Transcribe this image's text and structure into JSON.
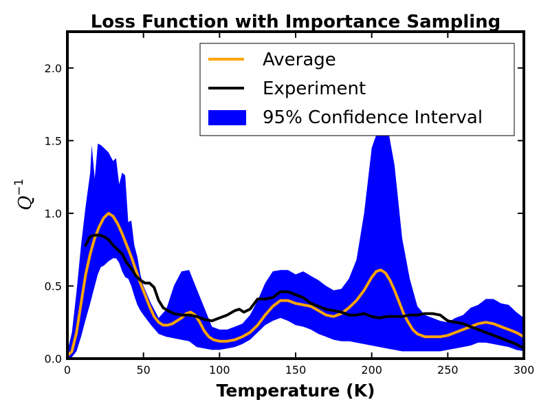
{
  "chart_data": {
    "type": "line",
    "title": "Loss Function with Importance Sampling",
    "xlabel": "Temperature (K)",
    "ylabel": "Q",
    "ylabel_superscript": "−1",
    "xlim": [
      0,
      300
    ],
    "ylim": [
      0,
      2.25
    ],
    "xticks": [
      0,
      50,
      100,
      150,
      200,
      250,
      300
    ],
    "yticks": [
      0.0,
      0.5,
      1.0,
      1.5,
      2.0
    ],
    "xtick_labels": [
      "0",
      "50",
      "100",
      "150",
      "200",
      "250",
      "300"
    ],
    "ytick_labels": [
      "0.0",
      "0.5",
      "1.0",
      "1.5",
      "2.0"
    ],
    "grid": false,
    "legend_position": "top-right",
    "legend": [
      "Average",
      "Experiment",
      "95% Confidence Interval"
    ],
    "colors": {
      "average": "#ffa500",
      "experiment": "#000000",
      "band": "#0000ff"
    },
    "series": [
      {
        "name": "Average",
        "x": [
          0,
          3,
          6,
          9,
          12,
          15,
          18,
          21,
          24,
          27,
          30,
          33,
          36,
          39,
          42,
          45,
          48,
          51,
          54,
          57,
          60,
          63,
          66,
          69,
          72,
          75,
          78,
          81,
          84,
          87,
          90,
          93,
          96,
          100,
          105,
          110,
          115,
          120,
          125,
          130,
          135,
          140,
          145,
          150,
          155,
          160,
          165,
          170,
          175,
          180,
          185,
          190,
          195,
          200,
          203,
          206,
          209,
          212,
          215,
          218,
          221,
          224,
          227,
          230,
          235,
          240,
          245,
          250,
          255,
          260,
          265,
          270,
          275,
          280,
          285,
          290,
          295,
          300
        ],
        "values": [
          0.02,
          0.05,
          0.18,
          0.38,
          0.58,
          0.72,
          0.83,
          0.91,
          0.97,
          1.0,
          0.98,
          0.93,
          0.86,
          0.78,
          0.7,
          0.61,
          0.52,
          0.44,
          0.36,
          0.29,
          0.25,
          0.23,
          0.23,
          0.24,
          0.26,
          0.28,
          0.31,
          0.32,
          0.3,
          0.25,
          0.19,
          0.15,
          0.13,
          0.12,
          0.12,
          0.13,
          0.15,
          0.18,
          0.23,
          0.3,
          0.36,
          0.4,
          0.4,
          0.38,
          0.37,
          0.36,
          0.33,
          0.3,
          0.29,
          0.31,
          0.35,
          0.4,
          0.47,
          0.56,
          0.6,
          0.61,
          0.59,
          0.54,
          0.47,
          0.39,
          0.31,
          0.25,
          0.2,
          0.17,
          0.15,
          0.15,
          0.15,
          0.16,
          0.18,
          0.2,
          0.22,
          0.24,
          0.25,
          0.24,
          0.22,
          0.2,
          0.18,
          0.15
        ]
      },
      {
        "name": "Experiment",
        "x": [
          12,
          15,
          18,
          21,
          24,
          27,
          30,
          33,
          36,
          39,
          42,
          45,
          48,
          51,
          54,
          57,
          60,
          63,
          66,
          70,
          75,
          80,
          85,
          90,
          95,
          100,
          105,
          110,
          113,
          116,
          120,
          125,
          130,
          135,
          140,
          145,
          150,
          155,
          160,
          165,
          170,
          175,
          180,
          185,
          190,
          195,
          200,
          205,
          210,
          215,
          220,
          225,
          230,
          235,
          240,
          245,
          250,
          255,
          260,
          265,
          270,
          275,
          280,
          285,
          290,
          295,
          300
        ],
        "values": [
          0.78,
          0.84,
          0.85,
          0.85,
          0.84,
          0.82,
          0.78,
          0.75,
          0.72,
          0.66,
          0.62,
          0.57,
          0.54,
          0.52,
          0.52,
          0.49,
          0.4,
          0.35,
          0.33,
          0.31,
          0.3,
          0.3,
          0.29,
          0.27,
          0.26,
          0.28,
          0.3,
          0.33,
          0.34,
          0.32,
          0.34,
          0.41,
          0.41,
          0.42,
          0.46,
          0.46,
          0.44,
          0.42,
          0.38,
          0.36,
          0.34,
          0.33,
          0.32,
          0.3,
          0.3,
          0.31,
          0.29,
          0.28,
          0.29,
          0.29,
          0.29,
          0.3,
          0.3,
          0.31,
          0.31,
          0.3,
          0.26,
          0.25,
          0.24,
          0.22,
          0.2,
          0.18,
          0.16,
          0.14,
          0.12,
          0.1,
          0.07
        ]
      }
    ],
    "band": {
      "name": "95% Confidence Interval",
      "x": [
        0,
        3,
        6,
        9,
        12,
        15,
        16,
        18,
        20,
        22,
        24,
        27,
        30,
        32,
        34,
        36,
        38,
        40,
        42,
        44,
        46,
        48,
        50,
        55,
        60,
        65,
        70,
        75,
        80,
        85,
        90,
        95,
        100,
        105,
        110,
        115,
        120,
        125,
        130,
        135,
        140,
        145,
        150,
        155,
        160,
        165,
        170,
        175,
        180,
        185,
        190,
        195,
        200,
        205,
        210,
        215,
        220,
        225,
        230,
        235,
        240,
        245,
        250,
        255,
        260,
        265,
        270,
        275,
        280,
        285,
        290,
        295,
        300
      ],
      "lower": [
        0.0,
        0.01,
        0.05,
        0.15,
        0.27,
        0.38,
        0.42,
        0.5,
        0.58,
        0.63,
        0.64,
        0.67,
        0.69,
        0.69,
        0.66,
        0.6,
        0.56,
        0.55,
        0.5,
        0.43,
        0.37,
        0.33,
        0.3,
        0.23,
        0.17,
        0.15,
        0.14,
        0.13,
        0.12,
        0.08,
        0.07,
        0.06,
        0.06,
        0.07,
        0.08,
        0.1,
        0.13,
        0.18,
        0.23,
        0.26,
        0.28,
        0.26,
        0.23,
        0.22,
        0.2,
        0.17,
        0.15,
        0.13,
        0.12,
        0.12,
        0.11,
        0.1,
        0.09,
        0.08,
        0.07,
        0.06,
        0.05,
        0.05,
        0.05,
        0.05,
        0.05,
        0.05,
        0.06,
        0.07,
        0.08,
        0.09,
        0.11,
        0.11,
        0.1,
        0.09,
        0.08,
        0.06,
        0.05
      ],
      "upper": [
        0.05,
        0.18,
        0.46,
        0.78,
        1.05,
        1.28,
        1.47,
        1.24,
        1.48,
        1.47,
        1.45,
        1.42,
        1.36,
        1.38,
        1.2,
        1.28,
        1.26,
        0.94,
        0.95,
        0.78,
        0.7,
        0.58,
        0.5,
        0.38,
        0.28,
        0.34,
        0.5,
        0.6,
        0.61,
        0.48,
        0.35,
        0.22,
        0.2,
        0.2,
        0.22,
        0.24,
        0.3,
        0.4,
        0.52,
        0.6,
        0.61,
        0.61,
        0.58,
        0.6,
        0.57,
        0.54,
        0.5,
        0.47,
        0.48,
        0.55,
        0.68,
        1.0,
        1.45,
        1.6,
        1.62,
        1.33,
        0.83,
        0.55,
        0.36,
        0.3,
        0.28,
        0.26,
        0.25,
        0.28,
        0.3,
        0.35,
        0.37,
        0.41,
        0.41,
        0.38,
        0.37,
        0.32,
        0.28
      ]
    }
  }
}
